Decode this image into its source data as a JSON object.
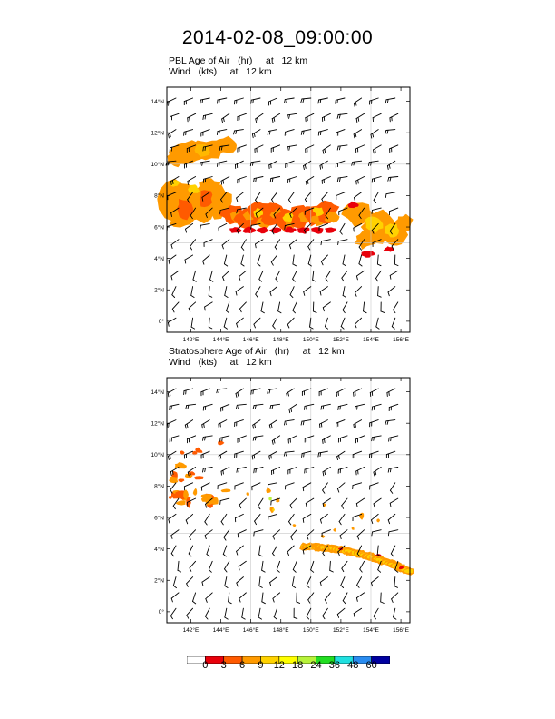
{
  "title": "2014-02-08_09:00:00",
  "panels": [
    {
      "id": "pbl",
      "label_line1": "PBL Age of Air   (hr)     at   12 km",
      "label_line2": "Wind   (kts)     at   12 km"
    },
    {
      "id": "strat",
      "label_line1": "Stratosphere Age of Air   (hr)     at   12 km",
      "label_line2": "Wind   (kts)     at   12 km"
    }
  ],
  "lat_ticks": [
    "0°",
    "2°N",
    "4°N",
    "6°N",
    "8°N",
    "10°N",
    "12°N",
    "14°N"
  ],
  "lon_ticks": [
    "142°E",
    "144°E",
    "146°E",
    "148°E",
    "150°E",
    "152°E",
    "154°E",
    "156°E"
  ],
  "colorbar": {
    "labels": [
      "0",
      "3",
      "6",
      "9",
      "12",
      "18",
      "24",
      "36",
      "48",
      "60"
    ],
    "colors": [
      "#ffffff",
      "#e8000b",
      "#ff5a00",
      "#ff9a00",
      "#ffd200",
      "#ffff00",
      "#b7f23a",
      "#22dd22",
      "#20e0e0",
      "#2a8cf0",
      "#0000a0"
    ]
  },
  "map": {
    "lat_range": [
      -0.7,
      14.9
    ],
    "lon_range": [
      140.4,
      156.6
    ],
    "gridlines": true,
    "fill_colors": {
      "orange": "#ff9a00",
      "gold": "#ffb800",
      "yellow": "#ffd200",
      "red_orange": "#ff5a00",
      "red": "#e8000b",
      "lime": "#b7f23a"
    }
  }
}
